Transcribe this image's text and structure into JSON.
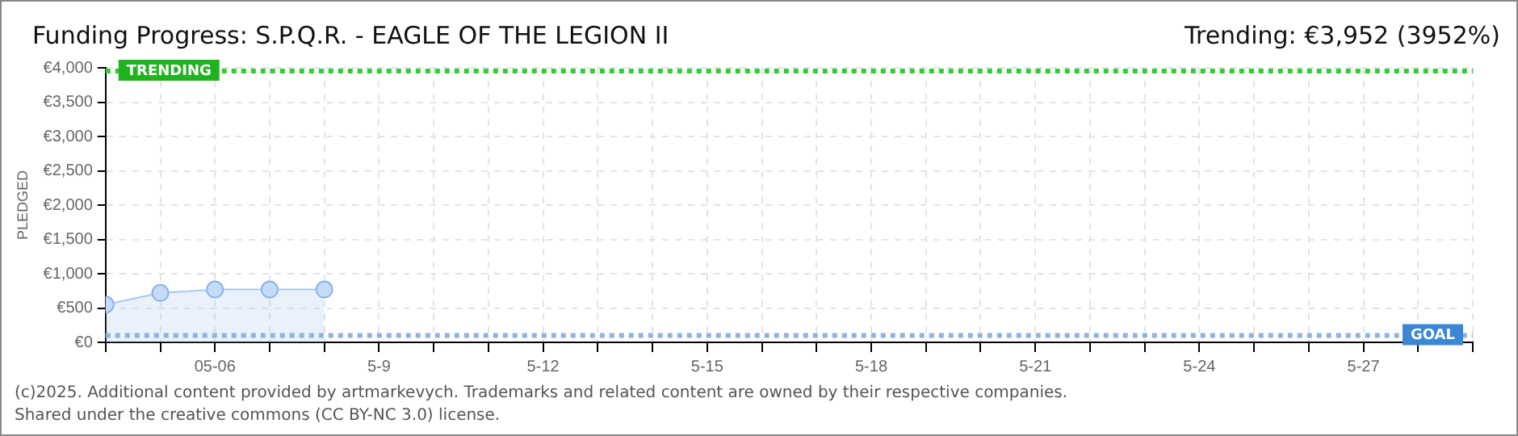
{
  "chart_data": {
    "type": "area",
    "title": "Funding Progress: S.P.Q.R. - EAGLE OF THE LEGION II",
    "subtitle": "Trending: €3,952 (3952%)",
    "ylabel": "PLEDGED",
    "annotations": [
      "(c)2025. Additional content provided by artmarkevych. Trademarks and related content are owned by their respective companies.",
      "Shared under the creative commons (CC BY-NC 3.0) license."
    ],
    "x": [
      "--05-04",
      "--05-05",
      "--05-06",
      "--05-07",
      "--05-08"
    ],
    "series": [
      {
        "color": "#a9c9ee",
        "values": [
          550,
          720,
          770,
          770,
          770
        ]
      }
    ],
    "marker": "circle",
    "grid": true,
    "line_style": "solid",
    "xlim": [
      "--05-04",
      "--05-29"
    ],
    "xticks": [
      {
        "value": "--05-04",
        "label": null
      },
      {
        "value": "--05-05",
        "label": null
      },
      {
        "value": "--05-06",
        "label": "05-06"
      },
      {
        "value": "--05-07",
        "label": null
      },
      {
        "value": "--05-08",
        "label": null
      },
      {
        "value": "--05-09",
        "label": "5-9"
      },
      {
        "value": "--05-10",
        "label": null
      },
      {
        "value": "--05-11",
        "label": null
      },
      {
        "value": "--05-12",
        "label": "5-12"
      },
      {
        "value": "--05-13",
        "label": null
      },
      {
        "value": "--05-14",
        "label": null
      },
      {
        "value": "--05-15",
        "label": "5-15"
      },
      {
        "value": "--05-16",
        "label": null
      },
      {
        "value": "--05-17",
        "label": null
      },
      {
        "value": "--05-18",
        "label": "5-18"
      },
      {
        "value": "--05-19",
        "label": null
      },
      {
        "value": "--05-20",
        "label": null
      },
      {
        "value": "--05-21",
        "label": "5-21"
      },
      {
        "value": "--05-22",
        "label": null
      },
      {
        "value": "--05-23",
        "label": null
      },
      {
        "value": "--05-24",
        "label": "5-24"
      },
      {
        "value": "--05-25",
        "label": null
      },
      {
        "value": "--05-26",
        "label": null
      },
      {
        "value": "--05-27",
        "label": "5-27"
      },
      {
        "value": "--05-28",
        "label": null
      },
      {
        "value": "--05-29",
        "label": null
      }
    ],
    "ylim": [
      0,
      4000
    ],
    "yticks": [
      {
        "value": 0,
        "label": "€0"
      },
      {
        "value": 500,
        "label": "€500"
      },
      {
        "value": 1000,
        "label": "€1,000"
      },
      {
        "value": 1500,
        "label": "€1,500"
      },
      {
        "value": 2000,
        "label": "€2,000"
      },
      {
        "value": 2500,
        "label": "€2,500"
      },
      {
        "value": 3000,
        "label": "€3,000"
      },
      {
        "value": 3500,
        "label": "€3,500"
      },
      {
        "value": 4000,
        "label": "€4,000"
      }
    ],
    "ref_lines": [
      {
        "axis": "y",
        "value": 3952,
        "label": "TRENDING",
        "color": "#33cc33",
        "line_style": "dotted"
      },
      {
        "axis": "y",
        "value": 100,
        "label": "GOAL",
        "color": "#8fb3e0",
        "line_style": "dotted"
      }
    ]
  }
}
